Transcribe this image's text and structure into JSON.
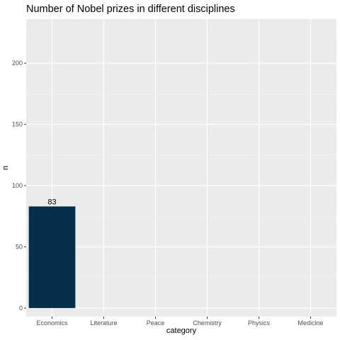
{
  "chart_data": {
    "type": "bar",
    "title": "Number of Nobel prizes in different disciplines",
    "xlabel": "category",
    "ylabel": "n",
    "categories": [
      "Economics",
      "Literature",
      "Peace",
      "Chemistry",
      "Physics",
      "Medicine"
    ],
    "values": [
      83,
      null,
      null,
      null,
      null,
      null
    ],
    "data_labels": [
      "83",
      "",
      "",
      "",
      "",
      ""
    ],
    "ylim": [
      -7,
      236
    ],
    "yticks": [
      0,
      50,
      100,
      150,
      200
    ],
    "ytick_labels": [
      "0",
      "50",
      "100",
      "150",
      "200"
    ],
    "grid": true,
    "legend": "none",
    "colors": {
      "bar": "#06304a",
      "panel": "#ebebeb",
      "grid_major": "#ffffff",
      "grid_minor": "#f4f4f4"
    }
  }
}
